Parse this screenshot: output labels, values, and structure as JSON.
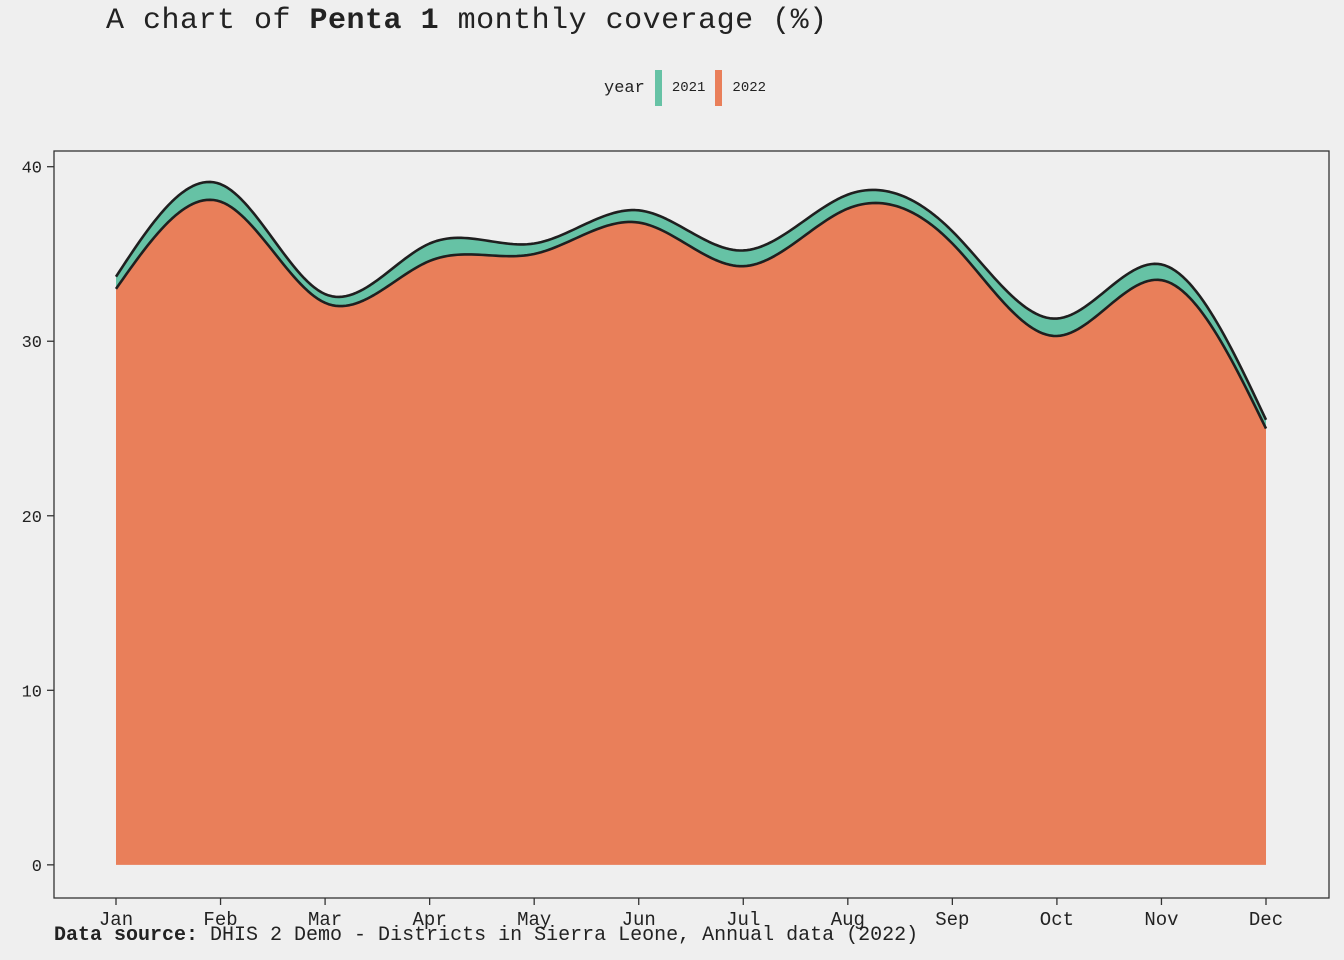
{
  "title": {
    "prefix": "A chart of ",
    "bold": "Penta 1",
    "suffix": " monthly coverage (%)"
  },
  "legend": {
    "title": "year",
    "items": [
      {
        "label": "2021",
        "color": "#66c2a5"
      },
      {
        "label": "2022",
        "color": "#e97f5a"
      }
    ]
  },
  "footer": {
    "label": "Data source:",
    "text": " DHIS 2 Demo - Districts in Sierra Leone, Annual data (2022)"
  },
  "chart_data": {
    "type": "area",
    "stacked": true,
    "smooth": true,
    "categories": [
      "Jan",
      "Feb",
      "Mar",
      "Apr",
      "May",
      "Jun",
      "Jul",
      "Aug",
      "Sep",
      "Oct",
      "Nov",
      "Dec"
    ],
    "series": [
      {
        "name": "2022",
        "color": "#e97f5a",
        "values": [
          33.0,
          38.0,
          32.2,
          34.6,
          35.0,
          36.8,
          34.3,
          37.6,
          35.6,
          30.3,
          33.5,
          25.0
        ]
      },
      {
        "name": "2021",
        "color": "#66c2a5",
        "values": [
          0.7,
          1.0,
          0.5,
          1.0,
          0.6,
          0.7,
          0.9,
          0.8,
          0.7,
          1.0,
          0.9,
          0.5
        ]
      }
    ],
    "y_ticks": [
      0,
      10,
      20,
      30,
      40
    ],
    "ylim": [
      -1.9,
      40.9
    ],
    "xlabel": "",
    "ylabel": "",
    "grid": false,
    "legend_position": "top"
  }
}
